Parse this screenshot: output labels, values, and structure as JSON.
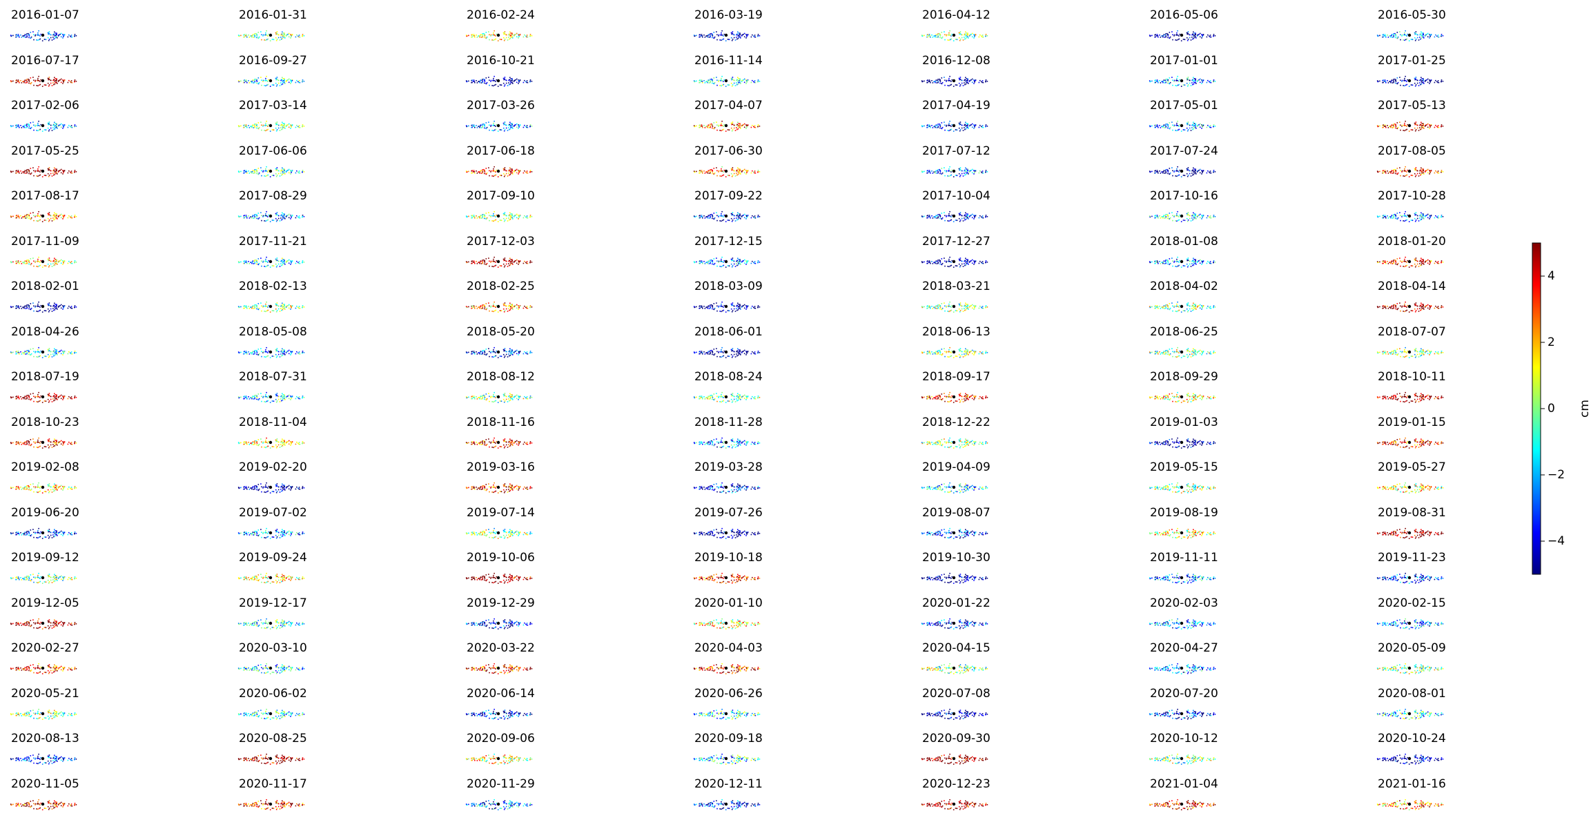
{
  "chart_data": {
    "type": "scatter",
    "layout": "small-multiples grid, 7 columns x 18 rows, one panel per acquisition date",
    "axes_visible": false,
    "grid": false,
    "colormap": "jet",
    "colormap_colors": [
      "#00007f",
      "#0000ff",
      "#0080ff",
      "#00ffff",
      "#80ff80",
      "#ffff00",
      "#ff8000",
      "#ff0000",
      "#7f0000"
    ],
    "reference_point_color": "#000000",
    "panels": [
      "2016-01-07",
      "2016-01-31",
      "2016-02-24",
      "2016-03-19",
      "2016-04-12",
      "2016-05-06",
      "2016-05-30",
      "2016-07-17",
      "2016-09-27",
      "2016-10-21",
      "2016-11-14",
      "2016-12-08",
      "2017-01-01",
      "2017-01-25",
      "2017-02-06",
      "2017-03-14",
      "2017-03-26",
      "2017-04-07",
      "2017-04-19",
      "2017-05-01",
      "2017-05-13",
      "2017-05-25",
      "2017-06-06",
      "2017-06-18",
      "2017-06-30",
      "2017-07-12",
      "2017-07-24",
      "2017-08-05",
      "2017-08-17",
      "2017-08-29",
      "2017-09-10",
      "2017-09-22",
      "2017-10-04",
      "2017-10-16",
      "2017-10-28",
      "2017-11-09",
      "2017-11-21",
      "2017-12-03",
      "2017-12-15",
      "2017-12-27",
      "2018-01-08",
      "2018-01-20",
      "2018-02-01",
      "2018-02-13",
      "2018-02-25",
      "2018-03-09",
      "2018-03-21",
      "2018-04-02",
      "2018-04-14",
      "2018-04-26",
      "2018-05-08",
      "2018-05-20",
      "2018-06-01",
      "2018-06-13",
      "2018-06-25",
      "2018-07-07",
      "2018-07-19",
      "2018-07-31",
      "2018-08-12",
      "2018-08-24",
      "2018-09-17",
      "2018-09-29",
      "2018-10-11",
      "2018-10-23",
      "2018-11-04",
      "2018-11-16",
      "2018-11-28",
      "2018-12-22",
      "2019-01-03",
      "2019-01-15",
      "2019-02-08",
      "2019-02-20",
      "2019-03-16",
      "2019-03-28",
      "2019-04-09",
      "2019-05-15",
      "2019-05-27",
      "2019-06-20",
      "2019-07-02",
      "2019-07-14",
      "2019-07-26",
      "2019-08-07",
      "2019-08-19",
      "2019-08-31",
      "2019-09-12",
      "2019-09-24",
      "2019-10-06",
      "2019-10-18",
      "2019-10-30",
      "2019-11-11",
      "2019-11-23",
      "2019-12-05",
      "2019-12-17",
      "2019-12-29",
      "2020-01-10",
      "2020-01-22",
      "2020-02-03",
      "2020-02-15",
      "2020-02-27",
      "2020-03-10",
      "2020-03-22",
      "2020-04-03",
      "2020-04-15",
      "2020-04-27",
      "2020-05-09",
      "2020-05-21",
      "2020-06-02",
      "2020-06-14",
      "2020-06-26",
      "2020-07-08",
      "2020-07-20",
      "2020-08-01",
      "2020-08-13",
      "2020-08-25",
      "2020-09-06",
      "2020-09-18",
      "2020-09-30",
      "2020-10-12",
      "2020-10-24",
      "2020-11-05",
      "2020-11-17",
      "2020-11-29",
      "2020-12-11",
      "2020-12-23",
      "2021-01-04",
      "2021-01-16"
    ],
    "colorbar": {
      "label": "cm",
      "min": -5,
      "max": 5,
      "ticks": [
        4,
        2,
        0,
        -2,
        -4
      ],
      "tick_labels": [
        "4",
        "2",
        "0",
        "−2",
        "−4"
      ]
    }
  }
}
